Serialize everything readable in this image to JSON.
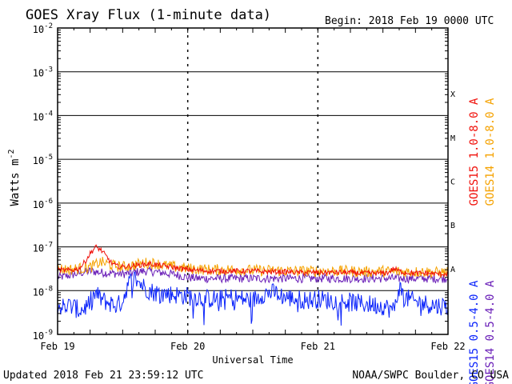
{
  "chart_data": {
    "type": "line",
    "title": "GOES Xray Flux (1-minute data)",
    "begin_label": "Begin:  2018 Feb 19 0000 UTC",
    "xlabel": "Universal Time",
    "ylabel": "Watts m",
    "ylabel_exponent": "-2",
    "yscale": "log",
    "ylim": [
      1e-09,
      0.01
    ],
    "xlim": [
      0,
      72
    ],
    "x_unit": "hours since 2018 Feb 19 0000 UTC",
    "y_ticks": [
      {
        "value": 0.01,
        "base": "10",
        "exp": "-2"
      },
      {
        "value": 0.001,
        "base": "10",
        "exp": "-3"
      },
      {
        "value": 0.0001,
        "base": "10",
        "exp": "-4"
      },
      {
        "value": 1e-05,
        "base": "10",
        "exp": "-5"
      },
      {
        "value": 1e-06,
        "base": "10",
        "exp": "-6"
      },
      {
        "value": 1e-07,
        "base": "10",
        "exp": "-7"
      },
      {
        "value": 1e-08,
        "base": "10",
        "exp": "-8"
      },
      {
        "value": 1e-09,
        "base": "10",
        "exp": "-9"
      }
    ],
    "x_ticks": [
      {
        "value": 0,
        "label": "Feb 19"
      },
      {
        "value": 24,
        "label": "Feb 20"
      },
      {
        "value": 48,
        "label": "Feb 21"
      },
      {
        "value": 72,
        "label": "Feb 22"
      }
    ],
    "flare_classes": [
      {
        "label": "X",
        "low": 0.0001,
        "high": 0.001
      },
      {
        "label": "M",
        "low": 1e-05,
        "high": 0.0001
      },
      {
        "label": "C",
        "low": 1e-06,
        "high": 1e-05
      },
      {
        "label": "B",
        "low": 1e-07,
        "high": 1e-06
      },
      {
        "label": "A",
        "low": 1e-08,
        "high": 1e-07
      }
    ],
    "grid": true,
    "legend_position": "right",
    "series": [
      {
        "name": "GOES14 0.5-4.0 A",
        "color": "#6a1fb8",
        "x": [
          0,
          2,
          4,
          6,
          8,
          10,
          12,
          14,
          16,
          18,
          20,
          22,
          24,
          26,
          28,
          30,
          32,
          34,
          36,
          38,
          40,
          42,
          44,
          46,
          48,
          50,
          52,
          54,
          56,
          58,
          60,
          62,
          64,
          66,
          68,
          70,
          72
        ],
        "y": [
          2e-08,
          2.2e-08,
          2.5e-08,
          2.8e-08,
          2.6e-08,
          2.5e-08,
          2.4e-08,
          2.6e-08,
          2.8e-08,
          2.7e-08,
          2.5e-08,
          2.3e-08,
          2e-08,
          1.9e-08,
          1.9e-08,
          1.9e-08,
          1.9e-08,
          1.9e-08,
          1.9e-08,
          1.9e-08,
          1.9e-08,
          1.9e-08,
          1.9e-08,
          1.9e-08,
          1.9e-08,
          1.9e-08,
          1.9e-08,
          1.9e-08,
          1.9e-08,
          1.9e-08,
          1.9e-08,
          1.9e-08,
          1.9e-08,
          1.9e-08,
          1.9e-08,
          1.9e-08,
          1.9e-08
        ]
      },
      {
        "name": "GOES15 0.5-4.0 A",
        "color": "#0b24fb",
        "x": [
          0,
          1,
          2,
          3,
          4,
          5,
          6,
          7,
          8,
          9,
          10,
          11,
          12,
          13,
          14,
          15,
          16,
          17,
          18,
          20,
          22,
          24,
          26,
          28,
          30,
          32,
          34,
          36,
          38,
          40,
          42,
          44,
          46,
          48,
          50,
          52,
          54,
          56,
          58,
          60,
          61,
          62,
          63,
          64,
          66,
          68,
          70,
          72
        ],
        "y": [
          4.5e-09,
          4.3e-09,
          4.5e-09,
          4.2e-09,
          3.5e-09,
          4e-09,
          5.5e-09,
          8.5e-09,
          6.5e-09,
          5.5e-09,
          5e-09,
          4.5e-09,
          6e-09,
          1.4e-08,
          2e-08,
          1.6e-08,
          1.2e-08,
          1e-08,
          9e-09,
          8.5e-09,
          8e-09,
          7.5e-09,
          7e-09,
          6.5e-09,
          6.5e-09,
          7e-09,
          6.5e-09,
          6e-09,
          8.5e-09,
          9e-09,
          7e-09,
          6.5e-09,
          6e-09,
          6.5e-09,
          6e-09,
          5.8e-09,
          5.5e-09,
          5e-09,
          4.8e-09,
          4.5e-09,
          4e-09,
          3.5e-09,
          1.2e-08,
          7e-09,
          5.5e-09,
          5e-09,
          4.5e-09,
          4.5e-09
        ]
      },
      {
        "name": "GOES14 1.0-8.0 A",
        "color": "#f5a200",
        "x": [
          0,
          2,
          4,
          6,
          8,
          10,
          12,
          14,
          16,
          18,
          20,
          22,
          24,
          26,
          28,
          30,
          32,
          34,
          36,
          38,
          40,
          42,
          44,
          46,
          48,
          50,
          52,
          54,
          56,
          58,
          60,
          62,
          64,
          66,
          68,
          70,
          72
        ],
        "y": [
          3.2e-08,
          3e-08,
          3.2e-08,
          3.4e-08,
          4.5e-08,
          3.8e-08,
          3.5e-08,
          3.8e-08,
          4.3e-08,
          4.2e-08,
          3.7e-08,
          3.4e-08,
          3.2e-08,
          3.1e-08,
          3e-08,
          3e-08,
          3e-08,
          3e-08,
          2.9e-08,
          2.9e-08,
          2.9e-08,
          2.8e-08,
          2.8e-08,
          2.8e-08,
          2.8e-08,
          2.8e-08,
          2.8e-08,
          2.8e-08,
          2.7e-08,
          2.7e-08,
          2.8e-08,
          2.7e-08,
          2.7e-08,
          2.7e-08,
          2.7e-08,
          2.6e-08,
          2.6e-08
        ]
      },
      {
        "name": "GOES15 1.0-8.0 A",
        "color": "#f0100a",
        "x": [
          0,
          1,
          2,
          3,
          4,
          5,
          6,
          7,
          8,
          9,
          10,
          11,
          12,
          14,
          16,
          17,
          18,
          20,
          22,
          24,
          26,
          28,
          30,
          32,
          34,
          36,
          38,
          40,
          42,
          44,
          46,
          48,
          50,
          52,
          54,
          56,
          58,
          60,
          61,
          62,
          63,
          64,
          66,
          68,
          70,
          72
        ],
        "y": [
          3e-08,
          2.9e-08,
          2.9e-08,
          3e-08,
          3.2e-08,
          4.5e-08,
          7e-08,
          1e-07,
          8.5e-08,
          6e-08,
          4.2e-08,
          3.6e-08,
          3.5e-08,
          3.7e-08,
          4e-08,
          4.1e-08,
          3.9e-08,
          3.6e-08,
          3.3e-08,
          3e-08,
          2.9e-08,
          2.8e-08,
          2.8e-08,
          2.8e-08,
          2.8e-08,
          2.8e-08,
          2.7e-08,
          2.7e-08,
          2.7e-08,
          2.6e-08,
          2.6e-08,
          2.6e-08,
          2.6e-08,
          2.6e-08,
          2.6e-08,
          2.5e-08,
          2.5e-08,
          2.5e-08,
          2.6e-08,
          3.2e-08,
          2.8e-08,
          2.6e-08,
          2.5e-08,
          2.5e-08,
          2.4e-08,
          2.4e-08
        ]
      }
    ],
    "legend_left_text": [
      "GOES15 0.5-4.0 A",
      "GOES15 1.0-8.0 A"
    ],
    "legend_right_text": [
      "GOES14 0.5-4.0 A",
      "GOES14 1.0-8.0 A"
    ]
  },
  "footer": {
    "updated": "Updated 2018 Feb 21 23:59:12 UTC",
    "credit": "NOAA/SWPC Boulder, CO USA"
  }
}
